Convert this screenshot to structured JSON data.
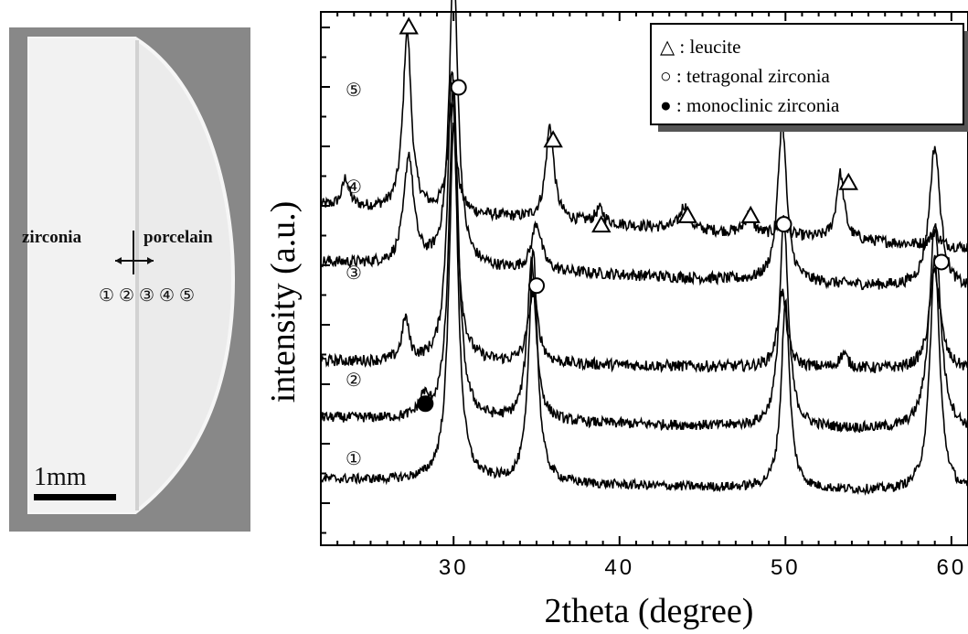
{
  "photo": {
    "label_left": "zirconia",
    "label_right": "porcelain",
    "positions": [
      "①",
      "②",
      "③",
      "④",
      "⑤"
    ],
    "scale_label": "1mm"
  },
  "chart_data": {
    "type": "line",
    "xlabel": "2theta (degree)",
    "ylabel": "intensity (a.u.)",
    "xlim": [
      22,
      61
    ],
    "x_ticks": [
      30,
      40,
      50,
      60
    ],
    "legend": [
      {
        "marker": "triangle",
        "label": "△ : leucite"
      },
      {
        "marker": "circle",
        "label": "○ : tetragonal zirconia"
      },
      {
        "marker": "filled-circle",
        "label": "● : monoclinic zirconia"
      }
    ],
    "legend_position": "top-right",
    "series": [
      {
        "name": "⑤",
        "baseline": 0.72,
        "slope": -0.09,
        "noise": 0.012,
        "peaks": [
          [
            23.5,
            0.06,
            0.25
          ],
          [
            27.2,
            0.38,
            0.3
          ],
          [
            29.9,
            0.24,
            0.28
          ],
          [
            35.8,
            0.2,
            0.3
          ],
          [
            38.8,
            0.03,
            0.3
          ],
          [
            43.9,
            0.05,
            0.3
          ],
          [
            47.8,
            0.04,
            0.3
          ],
          [
            49.8,
            0.03,
            0.3
          ],
          [
            53.3,
            0.14,
            0.28
          ],
          [
            59.0,
            0.03,
            0.3
          ]
        ]
      },
      {
        "name": "④",
        "baseline": 0.6,
        "slope": -0.06,
        "noise": 0.012,
        "peaks": [
          [
            27.3,
            0.23,
            0.35
          ],
          [
            30.0,
            0.64,
            0.32
          ],
          [
            35.0,
            0.1,
            0.35
          ],
          [
            49.8,
            0.34,
            0.32
          ],
          [
            59.0,
            0.3,
            0.4
          ]
        ]
      },
      {
        "name": "③",
        "baseline": 0.39,
        "slope": -0.02,
        "noise": 0.012,
        "peaks": [
          [
            27.1,
            0.09,
            0.25
          ],
          [
            29.9,
            0.62,
            0.32
          ],
          [
            34.8,
            0.15,
            0.35
          ],
          [
            49.8,
            0.16,
            0.32
          ],
          [
            53.5,
            0.03,
            0.3
          ],
          [
            59.0,
            0.21,
            0.4
          ]
        ]
      },
      {
        "name": "②",
        "baseline": 0.27,
        "slope": -0.03,
        "noise": 0.011,
        "peaks": [
          [
            28.2,
            0.04,
            0.3
          ],
          [
            30.0,
            0.72,
            0.32
          ],
          [
            34.7,
            0.34,
            0.32
          ],
          [
            49.9,
            0.44,
            0.32
          ],
          [
            59.0,
            0.44,
            0.4
          ]
        ]
      },
      {
        "name": "①",
        "baseline": 0.14,
        "slope": -0.03,
        "noise": 0.01,
        "peaks": [
          [
            30.0,
            0.76,
            0.32
          ],
          [
            34.8,
            0.5,
            0.3
          ],
          [
            50.0,
            0.4,
            0.3
          ],
          [
            59.0,
            0.5,
            0.35
          ]
        ]
      }
    ],
    "markers": [
      {
        "type": "triangle",
        "x": 27.3,
        "y": 1.1
      },
      {
        "type": "circle",
        "x": 30.3,
        "y": 0.97
      },
      {
        "type": "triangle",
        "x": 36.0,
        "y": 0.86
      },
      {
        "type": "triangle",
        "x": 38.9,
        "y": 0.68
      },
      {
        "type": "triangle",
        "x": 44.1,
        "y": 0.7
      },
      {
        "type": "triangle",
        "x": 47.9,
        "y": 0.7
      },
      {
        "type": "circle",
        "x": 49.9,
        "y": 0.68
      },
      {
        "type": "triangle",
        "x": 53.8,
        "y": 0.77
      },
      {
        "type": "circle",
        "x": 35.0,
        "y": 0.55
      },
      {
        "type": "circle",
        "x": 59.4,
        "y": 0.6
      },
      {
        "type": "filled-circle",
        "x": 28.3,
        "y": 0.3
      }
    ]
  }
}
